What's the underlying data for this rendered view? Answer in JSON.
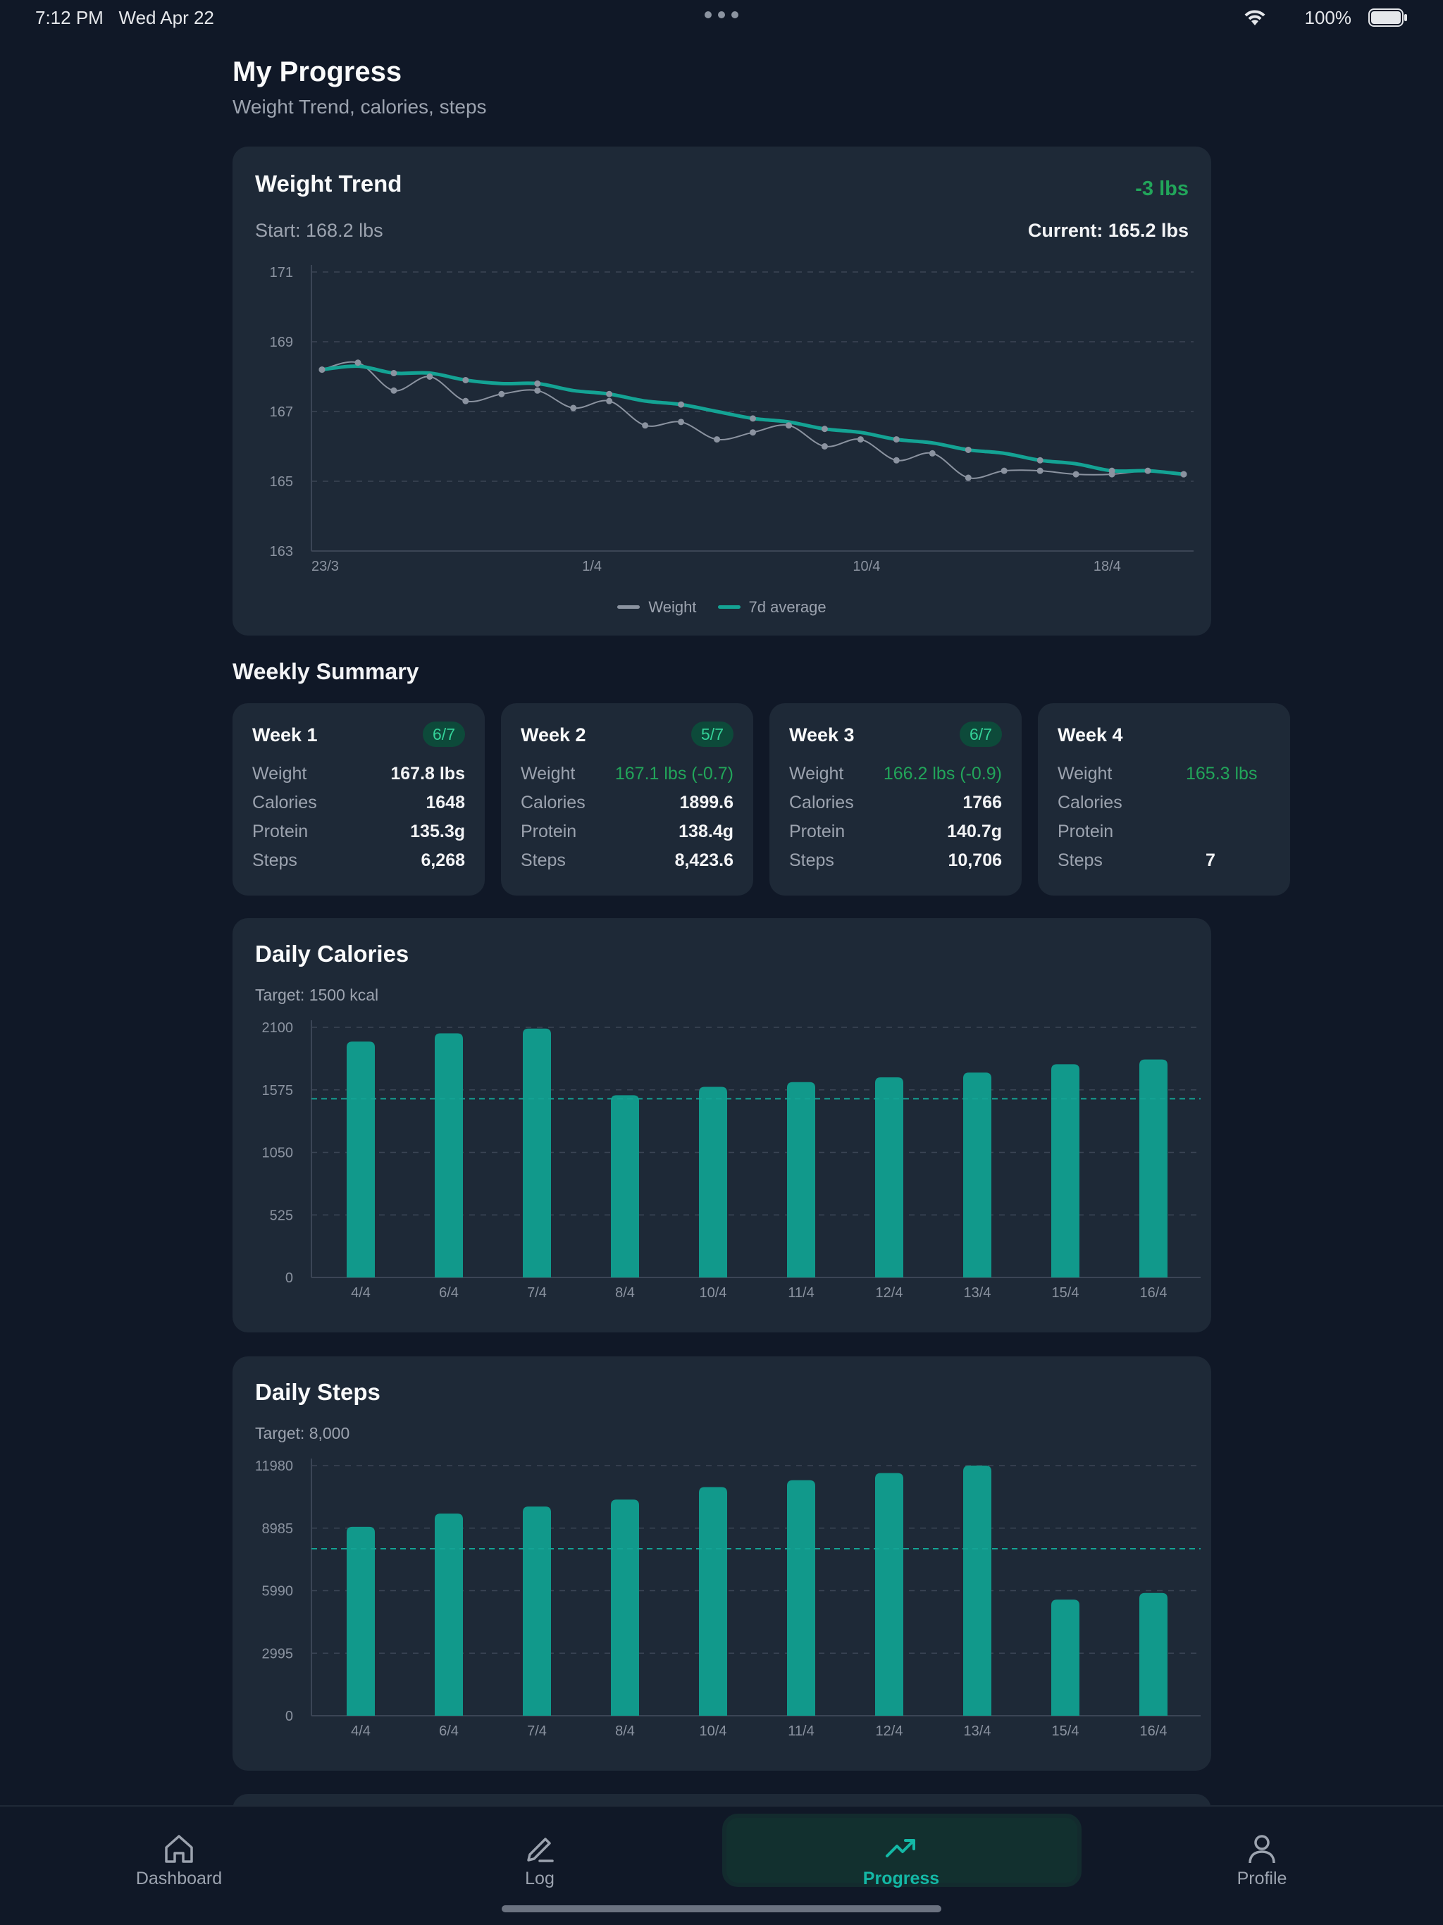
{
  "status": {
    "time": "7:12 PM",
    "date": "Wed Apr 22",
    "battery": "100%"
  },
  "header": {
    "title": "My Progress",
    "subtitle": "Weight Trend, calories, steps"
  },
  "weight_card": {
    "title": "Weight Trend",
    "delta": "-3 lbs",
    "start": "Start: 168.2 lbs",
    "current": "Current: 165.2 lbs",
    "legend": {
      "weight": "Weight",
      "avg": "7d average"
    },
    "colors": {
      "weight": "#8b93a0",
      "avg": "#14a394"
    }
  },
  "weekly": {
    "title": "Weekly Summary",
    "labels": {
      "weight": "Weight",
      "calories": "Calories",
      "protein": "Protein",
      "steps": "Steps"
    },
    "weeks": [
      {
        "name": "Week 1",
        "badge": "6/7",
        "weight": "167.8 lbs",
        "calories": "1648",
        "protein": "135.3g",
        "steps": "6,268"
      },
      {
        "name": "Week 2",
        "badge": "5/7",
        "weight": "167.1 lbs (-0.7)",
        "calories": "1899.6",
        "protein": "138.4g",
        "steps": "8,423.6"
      },
      {
        "name": "Week 3",
        "badge": "6/7",
        "weight": "166.2 lbs (-0.9)",
        "calories": "1766",
        "protein": "140.7g",
        "steps": "10,706"
      },
      {
        "name": "Week 4",
        "badge": "",
        "weight": "165.3 lbs",
        "calories": "",
        "protein": "",
        "steps": "7"
      }
    ]
  },
  "calories_card": {
    "title": "Daily Calories",
    "target": "Target: 1500 kcal"
  },
  "steps_card": {
    "title": "Daily Steps",
    "target": "Target: 8,000"
  },
  "tabs": [
    {
      "label": "Dashboard",
      "icon": "home-icon"
    },
    {
      "label": "Log",
      "icon": "pencil-icon"
    },
    {
      "label": "Progress",
      "icon": "trend-up-icon"
    },
    {
      "label": "Profile",
      "icon": "person-icon"
    }
  ],
  "accent": "#14a394",
  "chart_data": [
    {
      "type": "line",
      "title": "Weight Trend",
      "xlabel": "",
      "ylabel": "",
      "ylim": [
        163,
        171
      ],
      "yticks": [
        163,
        165,
        167,
        169,
        171
      ],
      "xticks": [
        "23/3",
        "1/4",
        "10/4",
        "18/4"
      ],
      "grid": true,
      "legend": "bottom-center",
      "series": [
        {
          "name": "Weight",
          "values": [
            168.2,
            168.4,
            167.6,
            168.0,
            167.3,
            167.5,
            167.6,
            167.1,
            167.3,
            166.6,
            166.7,
            166.2,
            166.4,
            166.6,
            166.0,
            166.2,
            165.6,
            165.8,
            165.1,
            165.3,
            165.3,
            165.2,
            165.2,
            165.3,
            165.2
          ]
        },
        {
          "name": "7d average",
          "values": [
            168.2,
            168.3,
            168.1,
            168.1,
            167.9,
            167.8,
            167.8,
            167.6,
            167.5,
            167.3,
            167.2,
            167.0,
            166.8,
            166.7,
            166.5,
            166.4,
            166.2,
            166.1,
            165.9,
            165.8,
            165.6,
            165.5,
            165.3,
            165.3,
            165.2
          ]
        }
      ]
    },
    {
      "type": "bar",
      "title": "Daily Calories",
      "categories": [
        "4/4",
        "6/4",
        "7/4",
        "8/4",
        "10/4",
        "11/4",
        "12/4",
        "13/4",
        "15/4",
        "16/4"
      ],
      "values": [
        1980,
        2050,
        2090,
        1530,
        1600,
        1640,
        1680,
        1720,
        1790,
        1830
      ],
      "ylim": [
        0,
        2100
      ],
      "yticks": [
        0,
        525,
        1050,
        1575,
        2100
      ],
      "target": 1500,
      "grid": true
    },
    {
      "type": "bar",
      "title": "Daily Steps",
      "categories": [
        "4/4",
        "6/4",
        "7/4",
        "8/4",
        "10/4",
        "11/4",
        "12/4",
        "13/4",
        "15/4",
        "16/4"
      ],
      "values": [
        9050,
        9680,
        10020,
        10350,
        10950,
        11280,
        11620,
        11980,
        5560,
        5880
      ],
      "ylim": [
        0,
        11980
      ],
      "yticks": [
        0,
        2995,
        5990,
        8985,
        11980
      ],
      "target": 8000,
      "grid": true
    }
  ]
}
